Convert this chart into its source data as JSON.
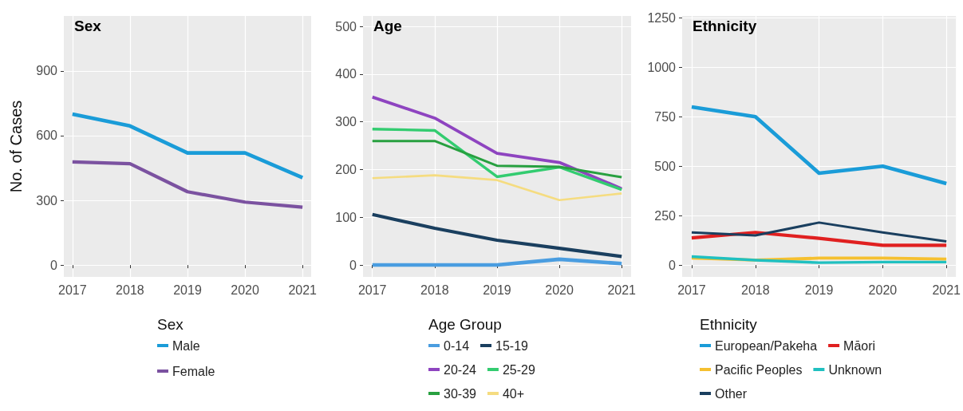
{
  "chart_data": [
    {
      "type": "line",
      "title": "Sex",
      "ylabel": "No. of Cases",
      "legend_title": "Sex",
      "legend": "bottom",
      "grid": true,
      "x": [
        2017,
        2018,
        2019,
        2020,
        2021
      ],
      "xlim": [
        2016.85,
        2021.15
      ],
      "xticks": [
        2017,
        2018,
        2019,
        2020,
        2021
      ],
      "ylim": [
        -55,
        1155
      ],
      "yticks": [
        0,
        300,
        600,
        900
      ],
      "series": [
        {
          "name": "Male",
          "color": "#1a9cd8",
          "values": [
            700,
            645,
            520,
            520,
            405
          ]
        },
        {
          "name": "Female",
          "color": "#7b52a0",
          "values": [
            478,
            470,
            340,
            292,
            268
          ]
        }
      ]
    },
    {
      "type": "line",
      "title": "Age",
      "legend_title": "Age Group",
      "legend": "bottom",
      "grid": true,
      "x": [
        2017,
        2018,
        2019,
        2020,
        2021
      ],
      "xlim": [
        2016.85,
        2021.15
      ],
      "xticks": [
        2017,
        2018,
        2019,
        2020,
        2021
      ],
      "ylim": [
        -25,
        522
      ],
      "yticks": [
        0,
        100,
        200,
        300,
        400,
        500
      ],
      "series": [
        {
          "name": "0-14",
          "color": "#4a9de0",
          "values": [
            0,
            0,
            0,
            12,
            3
          ]
        },
        {
          "name": "15-19",
          "color": "#1a3f5f",
          "values": [
            106,
            77,
            52,
            35,
            18
          ]
        },
        {
          "name": "20-24",
          "color": "#8e44c0",
          "values": [
            352,
            308,
            234,
            215,
            160
          ]
        },
        {
          "name": "25-29",
          "color": "#33cc70",
          "values": [
            285,
            282,
            185,
            205,
            158
          ]
        },
        {
          "name": "30-39",
          "color": "#28a040",
          "values": [
            260,
            260,
            208,
            206,
            184
          ]
        },
        {
          "name": "40+",
          "color": "#f5dc80",
          "values": [
            182,
            188,
            178,
            136,
            150
          ]
        }
      ]
    },
    {
      "type": "line",
      "title": "Ethnicity",
      "legend_title": "Ethnicity",
      "legend": "bottom",
      "grid": true,
      "x": [
        2017,
        2018,
        2019,
        2020,
        2021
      ],
      "xlim": [
        2016.85,
        2021.15
      ],
      "xticks": [
        2017,
        2018,
        2019,
        2020,
        2021
      ],
      "ylim": [
        -60,
        1260
      ],
      "yticks": [
        0,
        250,
        500,
        750,
        1000,
        1250
      ],
      "series": [
        {
          "name": "European/Pakeha",
          "color": "#1a9cd8",
          "values": [
            800,
            750,
            465,
            500,
            412
          ]
        },
        {
          "name": "Māori",
          "color": "#e02020",
          "values": [
            137,
            165,
            135,
            100,
            100
          ]
        },
        {
          "name": "Pacific Peoples",
          "color": "#f5c030",
          "values": [
            35,
            25,
            35,
            35,
            30
          ]
        },
        {
          "name": "Unknown",
          "color": "#20c0c0",
          "values": [
            43,
            25,
            12,
            15,
            15
          ]
        },
        {
          "name": "Other",
          "color": "#1a3f5f",
          "values": [
            165,
            150,
            215,
            165,
            120
          ]
        }
      ]
    }
  ]
}
